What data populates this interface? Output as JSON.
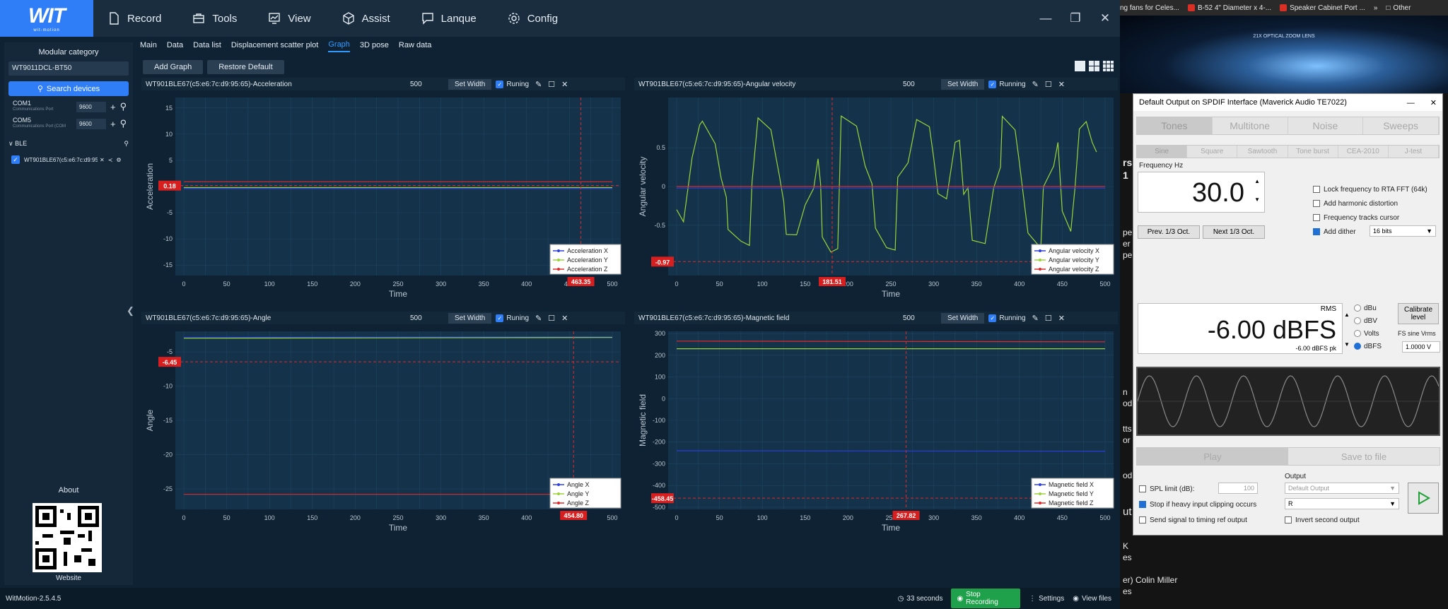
{
  "app": {
    "menu": [
      {
        "label": "Record",
        "icon": "file-icon"
      },
      {
        "label": "Tools",
        "icon": "toolbox-icon"
      },
      {
        "label": "View",
        "icon": "chart-icon"
      },
      {
        "label": "Assist",
        "icon": "cube-icon"
      },
      {
        "label": "Lanque",
        "icon": "chat-icon"
      },
      {
        "label": "Config",
        "icon": "gear-icon"
      }
    ],
    "logo_text": "WIT",
    "logo_sub": "wit-motion",
    "version": "WitMotion-2.5.4.5"
  },
  "sidebar": {
    "header": "Modular category",
    "device_model": "WT9011DCL-BT50",
    "search_label": "Search devices",
    "ports": [
      {
        "name": "COM1",
        "desc": "Communications Port",
        "baud": "9600"
      },
      {
        "name": "COM5",
        "desc": "Communications Port (COM",
        "baud": "9600"
      }
    ],
    "ble_header": "BLE",
    "ble_device": "WT901BLE67(c5:e6:7c:d9:95:65)",
    "about": "About",
    "website": "Website"
  },
  "tabs": [
    "Main",
    "Data",
    "Data list",
    "Displacement scatter plot",
    "Graph",
    "3D pose",
    "Raw data"
  ],
  "active_tab": "Graph",
  "toolbar": {
    "add_graph": "Add Graph",
    "restore_default": "Restore Default"
  },
  "panel_common": {
    "width": "500",
    "set_width": "Set Width"
  },
  "panels": [
    {
      "title": "WT901BLE67(c5:e6:7c:d9:95:65)-Acceleration",
      "running": "Runing",
      "ylabel": "Acceleration",
      "xlabel": "Time",
      "cursor_y": "0.18",
      "cursor_x": "463.35",
      "legend": [
        "Acceleration X",
        "Acceleration Y",
        "Acceleration Z"
      ],
      "yticks": [
        "15",
        "10",
        "5",
        "0",
        "-5",
        "-10",
        "-15"
      ]
    },
    {
      "title": "WT901BLE67(c5:e6:7c:d9:95:65)-Angular velocity",
      "running": "Running",
      "ylabel": "Angular velocity",
      "xlabel": "Time",
      "cursor_y": "-0.97",
      "cursor_x": "181.51",
      "legend": [
        "Angular velocity X",
        "Angular velocity Y",
        "Angular velocity Z"
      ],
      "yticks": [
        "0.5",
        "0",
        "-0.5"
      ]
    },
    {
      "title": "WT901BLE67(c5:e6:7c:d9:95:65)-Angle",
      "running": "Runing",
      "ylabel": "Angle",
      "xlabel": "Time",
      "cursor_y": "-6.45",
      "cursor_x": "454.80",
      "legend": [
        "Angle X",
        "Angle Y",
        "Angle Z"
      ],
      "yticks": [
        "-5",
        "-10",
        "-15",
        "-20",
        "-25"
      ]
    },
    {
      "title": "WT901BLE67(c5:e6:7c:d9:95:65)-Magnetic field",
      "running": "Running",
      "ylabel": "Magnetic field",
      "xlabel": "Time",
      "cursor_y": "-458.45",
      "cursor_x": "267.82",
      "legend": [
        "Magnetic field X",
        "Magnetic field Y",
        "Magnetic field Z"
      ],
      "yticks": [
        "300",
        "200",
        "100",
        "0",
        "-100",
        "-200",
        "-300",
        "-400",
        "-500"
      ]
    }
  ],
  "xticks": [
    "0",
    "50",
    "100",
    "150",
    "200",
    "250",
    "300",
    "350",
    "400",
    "450",
    "500"
  ],
  "bottombar": {
    "timer": "33 seconds",
    "stop_recording": "Stop Recording",
    "settings": "Settings",
    "view_files": "View files"
  },
  "colors": {
    "accent": "#2f7ef7",
    "x_series": "#2b3fe0",
    "y_series": "#9bd43a",
    "z_series": "#e02a2a",
    "record_green": "#1fa04a"
  },
  "browser": {
    "bookmarks": [
      "ng fans for Celes...",
      "B-52 4\" Diameter x 4-...",
      "Speaker Cabinet Port ...",
      "Other"
    ],
    "lens_text": "21X OPTICAL ZOOM LENS",
    "snippets": [
      "rs",
      "1",
      "pe",
      "er",
      "pe",
      "n",
      "od",
      "tts",
      "or",
      "od",
      "ut",
      "K",
      "es",
      "er) Colin Miller",
      "es"
    ]
  },
  "rew": {
    "title": "Default Output on SPDIF Interface (Maverick Audio TE7022)",
    "tabs": [
      "Tones",
      "Multitone",
      "Noise",
      "Sweeps"
    ],
    "waves": [
      "Sine",
      "Square",
      "Sawtooth",
      "Tone burst",
      "CEA-2010",
      "J-test"
    ],
    "freq_label": "Frequency Hz",
    "freq_value": "30.0",
    "prev_oct": "Prev. 1/3 Oct.",
    "next_oct": "Next 1/3 Oct.",
    "opts": [
      "Lock frequency to RTA FFT (64k)",
      "Add harmonic distortion",
      "Frequency tracks cursor",
      "Add dither"
    ],
    "dither_bits": "16 bits",
    "rms_label": "RMS",
    "rms_value": "-6.00 dBFS",
    "rms_pk": "-6.00 dBFS pk",
    "units": [
      "dBu",
      "dBV",
      "Volts",
      "dBFS"
    ],
    "calibrate": "Calibrate level",
    "fs_label": "FS sine Vrms",
    "fs_value": "1.0000 V",
    "play": "Play",
    "save": "Save to file",
    "spl_limit": "SPL limit (dB):",
    "spl_value": "100",
    "stop_clip": "Stop if heavy input clipping occurs",
    "send_signal": "Send signal to timing ref output",
    "output_label": "Output",
    "output_value": "Default Output",
    "channel": "R",
    "invert": "Invert second output"
  }
}
